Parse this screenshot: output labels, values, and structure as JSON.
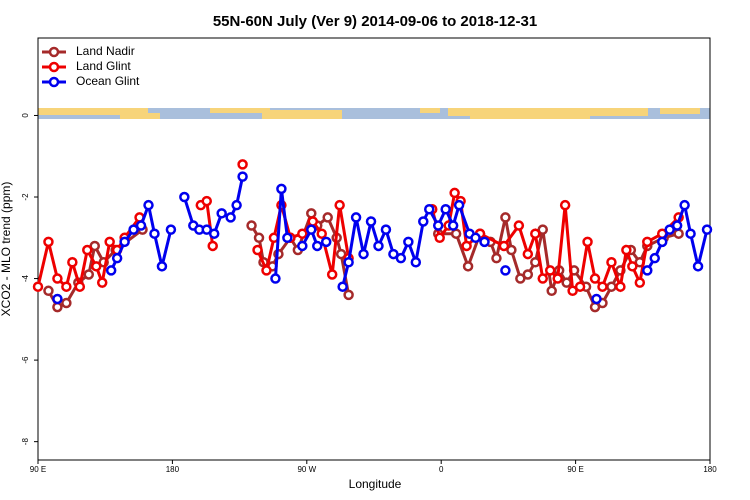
{
  "chart_data": {
    "type": "line",
    "title": "55N-60N July (Ver 9)   2014-09-06 to 2018-12-31",
    "x_label": "Longitude",
    "y_label": "XCO2 - MLO trend (ppm)",
    "xlim": [
      90,
      540
    ],
    "xticks": [
      {
        "value": 90,
        "label": "90 E"
      },
      {
        "value": 180,
        "label": "180"
      },
      {
        "value": 270,
        "label": "90 W"
      },
      {
        "value": 360,
        "label": "0"
      },
      {
        "value": 450,
        "label": "90 E"
      },
      {
        "value": 540,
        "label": "180"
      }
    ],
    "ylim": [
      -8.45,
      1.9
    ],
    "yticks": [
      0,
      -2,
      -4,
      -6,
      -8
    ],
    "legend": "top-left",
    "series": [
      {
        "name": "Land Nadir",
        "color": "#a52a2a",
        "x": [
          97,
          103,
          109,
          117,
          124,
          128,
          134,
          142,
          160,
          null,
          233,
          238,
          241,
          247,
          251,
          259,
          264,
          273,
          277,
          284,
          290,
          293,
          298,
          null,
          358,
          370,
          378,
          386,
          393,
          397,
          403,
          407,
          413,
          418,
          423,
          428,
          434,
          439,
          444,
          449,
          457,
          463,
          468,
          474,
          480,
          487,
          493,
          498,
          509,
          519
        ],
        "values": [
          -4.3,
          -4.7,
          -4.6,
          -4.1,
          -3.9,
          -3.2,
          -3.6,
          -3.3,
          -2.8,
          null,
          -2.7,
          -3.0,
          -3.6,
          -3.7,
          -3.4,
          -3.0,
          -3.3,
          -2.4,
          -2.7,
          -2.5,
          -3.0,
          -3.4,
          -4.4,
          null,
          -2.9,
          -2.9,
          -3.7,
          -2.9,
          -3.1,
          -3.5,
          -2.5,
          -3.3,
          -4.0,
          -3.9,
          -3.6,
          -2.8,
          -4.3,
          -3.8,
          -4.1,
          -3.8,
          -4.2,
          -4.7,
          -4.6,
          -4.2,
          -3.8,
          -3.3,
          -3.6,
          -3.2,
          -3.0,
          -2.9
        ]
      },
      {
        "name": "Land Glint",
        "color": "#ee0000",
        "x": [
          90,
          97,
          103,
          109,
          113,
          118,
          123,
          129,
          133,
          138,
          143,
          148,
          158,
          null,
          199,
          203,
          207,
          null,
          227,
          null,
          237,
          243,
          248,
          253,
          259,
          267,
          274,
          280,
          287,
          292,
          298,
          null,
          354,
          359,
          365,
          369,
          373,
          377,
          386,
          402,
          412,
          418,
          423,
          428,
          433,
          438,
          443,
          448,
          453,
          458,
          463,
          468,
          474,
          480,
          484,
          488,
          493,
          498,
          508,
          519
        ],
        "values": [
          -4.2,
          -3.1,
          -4.0,
          -4.2,
          -3.6,
          -4.2,
          -3.3,
          -3.7,
          -4.1,
          -3.1,
          -3.3,
          -3.0,
          -2.5,
          null,
          -2.2,
          -2.1,
          -3.2,
          null,
          -1.2,
          null,
          -3.3,
          -3.8,
          -3.0,
          -2.2,
          -3.0,
          -2.9,
          -2.6,
          -2.9,
          -3.9,
          -2.2,
          -3.5,
          null,
          -2.3,
          -3.0,
          -2.7,
          -1.9,
          -2.1,
          -3.2,
          -2.9,
          -3.2,
          -2.7,
          -3.4,
          -2.9,
          -4.0,
          -3.8,
          -4.0,
          -2.2,
          -4.3,
          -4.2,
          -3.1,
          -4.0,
          -4.2,
          -3.6,
          -4.2,
          -3.3,
          -3.7,
          -4.1,
          -3.1,
          -2.9,
          -2.5
        ]
      },
      {
        "name": "Ocean Glint",
        "color": "#0000ee",
        "x": [
          103,
          null,
          139,
          143,
          148,
          154,
          159,
          164,
          168,
          173,
          179,
          null,
          188,
          194,
          198,
          203,
          208,
          213,
          219,
          223,
          227,
          null,
          249,
          253,
          257,
          null,
          267,
          273,
          277,
          283,
          null,
          294,
          298,
          303,
          308,
          313,
          318,
          323,
          328,
          333,
          338,
          343,
          348,
          352,
          358,
          363,
          368,
          372,
          379,
          383,
          389,
          null,
          403,
          null,
          464,
          null,
          498,
          503,
          508,
          513,
          518,
          523,
          527,
          532,
          538
        ],
        "values": [
          -4.5,
          null,
          -3.8,
          -3.5,
          -3.1,
          -2.8,
          -2.7,
          -2.2,
          -2.9,
          -3.7,
          -2.8,
          null,
          -2.0,
          -2.7,
          -2.8,
          -2.8,
          -2.9,
          -2.4,
          -2.5,
          -2.2,
          -1.5,
          null,
          -4.0,
          -1.8,
          -3.0,
          null,
          -3.2,
          -2.8,
          -3.2,
          -3.1,
          null,
          -4.2,
          -3.6,
          -2.5,
          -3.4,
          -2.6,
          -3.2,
          -2.8,
          -3.4,
          -3.5,
          -3.1,
          -3.6,
          -2.6,
          -2.3,
          -2.7,
          -2.3,
          -2.7,
          -2.2,
          -2.9,
          -3.0,
          -3.1,
          null,
          -3.8,
          null,
          -4.5,
          null,
          -3.8,
          -3.5,
          -3.1,
          -2.8,
          -2.7,
          -2.2,
          -2.9,
          -3.7,
          -2.8
        ]
      }
    ]
  }
}
